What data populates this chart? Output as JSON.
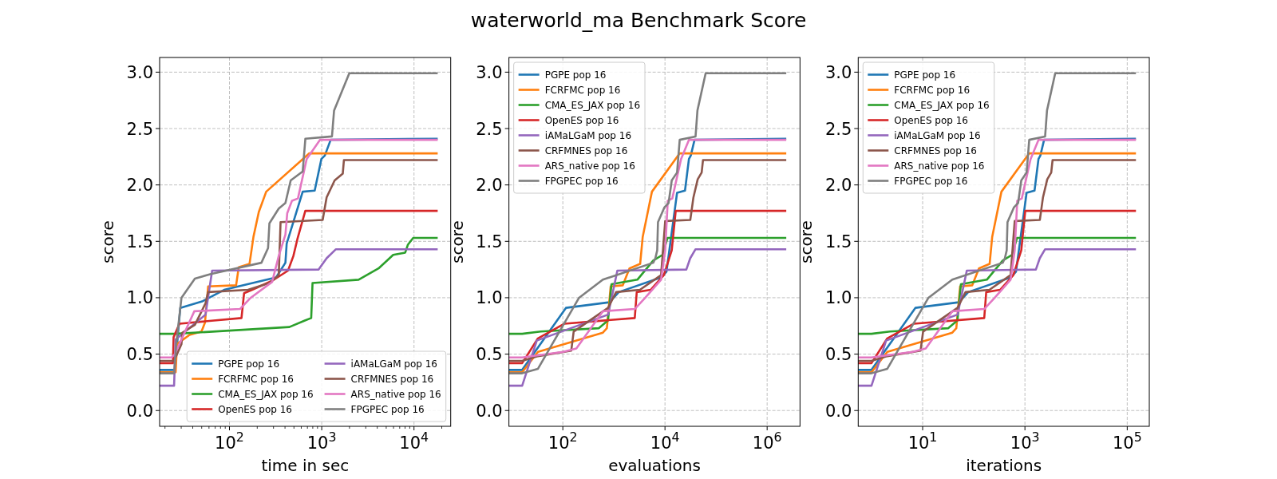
{
  "chart_data": [
    {
      "type": "line",
      "xlabel": "time in sec",
      "ylabel": "score",
      "log": "x",
      "grid": true,
      "legend": "bottom right",
      "xlim": [
        17.5,
        25000
      ],
      "ylim": [
        -0.14,
        3.13
      ],
      "xticks": [
        {
          "value": 20,
          "label": null
        },
        {
          "value": 30,
          "label": null
        },
        {
          "value": 40,
          "label": null
        },
        {
          "value": 50,
          "label": null
        },
        {
          "value": 60,
          "label": null
        },
        {
          "value": 70,
          "label": null
        },
        {
          "value": 80,
          "label": null
        },
        {
          "value": 90,
          "label": null
        },
        {
          "value": 100,
          "label": "10$^{2}$"
        },
        {
          "value": 200,
          "label": null
        },
        {
          "value": 300,
          "label": null
        },
        {
          "value": 400,
          "label": null
        },
        {
          "value": 500,
          "label": null
        },
        {
          "value": 600,
          "label": null
        },
        {
          "value": 700,
          "label": null
        },
        {
          "value": 800,
          "label": null
        },
        {
          "value": 900,
          "label": null
        },
        {
          "value": 1000,
          "label": "10$^{3}$"
        },
        {
          "value": 2000,
          "label": null
        },
        {
          "value": 3000,
          "label": null
        },
        {
          "value": 4000,
          "label": null
        },
        {
          "value": 5000,
          "label": null
        },
        {
          "value": 6000,
          "label": null
        },
        {
          "value": 7000,
          "label": null
        },
        {
          "value": 8000,
          "label": null
        },
        {
          "value": 9000,
          "label": null
        },
        {
          "value": 10000,
          "label": "10$^{4}$"
        },
        {
          "value": 20000,
          "label": null
        }
      ],
      "yticks": [
        {
          "value": 0,
          "label": "0.0"
        },
        {
          "value": 0.5,
          "label": "0.5"
        },
        {
          "value": 1,
          "label": "1.0"
        },
        {
          "value": 1.5,
          "label": "1.5"
        },
        {
          "value": 2,
          "label": "2.0"
        },
        {
          "value": 2.5,
          "label": "2.5"
        },
        {
          "value": 3,
          "label": "3.0"
        }
      ],
      "series": [
        {
          "name": "PGPE pop 16",
          "color": "#1f77b4",
          "x": [
            17.5,
            25.6,
            29.3,
            51.4,
            87.5,
            320,
            404,
            417,
            622,
            839,
            991,
            1080,
            1250,
            18070
          ],
          "values": [
            0.36,
            0.36,
            0.91,
            0.97,
            1.07,
            1.18,
            1.31,
            1.48,
            1.94,
            1.95,
            2.23,
            2.26,
            2.4,
            2.41
          ]
        },
        {
          "name": "FCRFMC pop 16",
          "color": "#ff7f0e",
          "x": [
            17.5,
            26.1,
            27,
            36.9,
            49.8,
            54.3,
            58.7,
            118,
            126,
            165,
            182,
            208,
            250,
            734,
            18070
          ],
          "values": [
            0.34,
            0.34,
            0.59,
            0.67,
            0.7,
            0.78,
            1.1,
            1.11,
            1.27,
            1.3,
            1.54,
            1.76,
            1.94,
            2.28,
            2.28
          ]
        },
        {
          "name": "CMA_ES_JAX pop 16",
          "color": "#2ca02c",
          "x": [
            17.5,
            25.6,
            446,
            664,
            769,
            795,
            2510,
            4130,
            5950,
            8030,
            8590,
            9800,
            18070
          ],
          "values": [
            0.68,
            0.68,
            0.74,
            0.8,
            0.82,
            1.13,
            1.16,
            1.26,
            1.38,
            1.4,
            1.47,
            1.53,
            1.53
          ]
        },
        {
          "name": "OpenES pop 16",
          "color": "#d62728",
          "x": [
            17.5,
            24.4,
            24.8,
            28.7,
            135,
            144,
            176,
            290,
            431,
            493,
            545,
            664,
            18070
          ],
          "values": [
            0.42,
            0.42,
            0.65,
            0.77,
            0.82,
            1.04,
            1.07,
            1.15,
            1.24,
            1.37,
            1.52,
            1.77,
            1.77
          ]
        },
        {
          "name": "iAMaLGaM pop 16",
          "color": "#9467bd",
          "x": [
            17.5,
            25.1,
            26.1,
            55,
            64.9,
            926,
            1130,
            1426,
            18070
          ],
          "values": [
            0.22,
            0.22,
            0.63,
            0.85,
            1.24,
            1.25,
            1.35,
            1.43,
            1.43
          ]
        },
        {
          "name": "CRFMNES pop 16",
          "color": "#8c564b",
          "x": [
            17.5,
            25.1,
            30.2,
            30.8,
            42.2,
            55,
            58.7,
            159,
            271,
            342,
            358,
            1024,
            1130,
            1380,
            1690,
            1740,
            18070
          ],
          "values": [
            0.44,
            0.44,
            0.59,
            0.69,
            0.76,
            0.95,
            1.05,
            1.07,
            1.13,
            1.2,
            1.67,
            1.69,
            1.89,
            2.04,
            2.1,
            2.22,
            2.22
          ]
        },
        {
          "name": "ARS_native pop 16",
          "color": "#e377c2",
          "x": [
            17.5,
            23.5,
            25.6,
            41.6,
            130,
            170,
            290,
            342,
            404,
            423,
            476,
            552,
            687,
            957,
            18070
          ],
          "values": [
            0.47,
            0.47,
            0.5,
            0.88,
            0.9,
            1.0,
            1.14,
            1.37,
            1.56,
            1.75,
            1.86,
            1.88,
            2.23,
            2.4,
            2.4
          ]
        },
        {
          "name": "FPGPEC pop 16",
          "color": "#7f7f7f",
          "x": [
            17.5,
            25.1,
            26.5,
            30.2,
            42.2,
            62.8,
            222,
            262,
            271,
            342,
            404,
            461,
            622,
            665,
            1291,
            1361,
            1990,
            18070
          ],
          "values": [
            0.33,
            0.33,
            0.59,
            1.0,
            1.17,
            1.21,
            1.31,
            1.44,
            1.66,
            1.79,
            1.84,
            2.04,
            2.12,
            2.41,
            2.43,
            2.66,
            2.99,
            2.99
          ]
        }
      ]
    },
    {
      "type": "line",
      "title": "waterworld_ma Benchmark Score",
      "xlabel": "evaluations",
      "ylabel": "score",
      "log": "x",
      "grid": true,
      "legend": "top left",
      "xlim": [
        8.8,
        4400000
      ],
      "ylim": [
        -0.14,
        3.13
      ],
      "xticks": [
        {
          "value": 100,
          "label": "10$^{2}$"
        },
        {
          "value": 10000,
          "label": "10$^{4}$"
        },
        {
          "value": 1000000,
          "label": "10$^{6}$"
        }
      ],
      "yticks": [
        {
          "value": 0,
          "label": "0.0"
        },
        {
          "value": 0.5,
          "label": "0.5"
        },
        {
          "value": 1,
          "label": "1.0"
        },
        {
          "value": 1.5,
          "label": "1.5"
        },
        {
          "value": 2,
          "label": "2.0"
        },
        {
          "value": 2.5,
          "label": "2.5"
        },
        {
          "value": 3,
          "label": "3.0"
        }
      ],
      "series": [
        {
          "name": "PGPE pop 16",
          "color": "#1f77b4",
          "x": [
            8.8,
            16,
            115,
            816,
            1248,
            8384,
            10688,
            17232,
            24640,
            29440,
            32000,
            37920,
            2368000
          ],
          "values": [
            0.36,
            0.36,
            0.91,
            0.96,
            1.05,
            1.18,
            1.23,
            1.93,
            1.95,
            2.23,
            2.26,
            2.4,
            2.41
          ]
        },
        {
          "name": "FCRFMC pop 16",
          "color": "#ff7f0e",
          "x": [
            8.8,
            16,
            32.6,
            608,
            728,
            864,
            1488,
            2016,
            3264,
            3664,
            5552,
            19424,
            2368000
          ],
          "values": [
            0.34,
            0.34,
            0.52,
            0.69,
            0.73,
            1.1,
            1.11,
            1.26,
            1.3,
            1.54,
            1.94,
            2.28,
            2.28
          ]
        },
        {
          "name": "CMA_ES_JAX pop 16",
          "color": "#2ca02c",
          "x": [
            8.8,
            16,
            36.8,
            509,
            768,
            896,
            2880,
            5888,
            8928,
            11200,
            2368000
          ],
          "values": [
            0.68,
            0.68,
            0.7,
            0.73,
            0.8,
            1.12,
            1.16,
            1.33,
            1.38,
            1.53,
            1.53
          ]
        },
        {
          "name": "OpenES pop 16",
          "color": "#d62728",
          "x": [
            8.8,
            16,
            32.6,
            108,
            2560,
            2800,
            5232,
            9488,
            13552,
            16224,
            2368000
          ],
          "values": [
            0.42,
            0.42,
            0.64,
            0.77,
            0.82,
            1.05,
            1.07,
            1.2,
            1.42,
            1.77,
            1.77
          ]
        },
        {
          "name": "iAMaLGaM pop 16",
          "color": "#9467bd",
          "x": [
            8.8,
            16,
            30.9,
            768,
            1168,
            26192,
            31200,
            39680,
            2368000
          ],
          "values": [
            0.22,
            0.22,
            0.62,
            0.85,
            1.24,
            1.25,
            1.35,
            1.43,
            1.43
          ]
        },
        {
          "name": "CRFMNES pop 16",
          "color": "#8c564b",
          "x": [
            8.8,
            16,
            30.9,
            146,
            163,
            768,
            1104,
            3232,
            8384,
            10096,
            31280,
            36064,
            43680,
            52240,
            55472,
            2368000
          ],
          "values": [
            0.44,
            0.44,
            0.48,
            0.53,
            0.7,
            0.91,
            1.05,
            1.07,
            1.2,
            1.68,
            1.69,
            1.89,
            2.05,
            2.11,
            2.22,
            2.22
          ]
        },
        {
          "name": "ARS_native pop 16",
          "color": "#e377c2",
          "x": [
            8.8,
            16,
            102,
            184,
            608,
            2560,
            4112,
            8384,
            10096,
            11328,
            13888,
            20640,
            29440,
            2368000
          ],
          "values": [
            0.47,
            0.47,
            0.52,
            0.55,
            0.88,
            0.9,
            1.0,
            1.16,
            1.42,
            1.86,
            1.88,
            2.23,
            2.4,
            2.4
          ]
        },
        {
          "name": "FPGPEC pop 16",
          "color": "#7f7f7f",
          "x": [
            8.8,
            16,
            32.6,
            208,
            608,
            5888,
            6480,
            7040,
            7296,
            9712,
            11760,
            13568,
            17232,
            19424,
            39680,
            43200,
            62560,
            2368000
          ],
          "values": [
            0.33,
            0.33,
            0.37,
            1.0,
            1.16,
            1.31,
            1.35,
            1.42,
            1.67,
            1.8,
            1.84,
            2.04,
            2.11,
            2.4,
            2.43,
            2.66,
            2.99,
            2.99
          ]
        }
      ]
    },
    {
      "type": "line",
      "xlabel": "iterations",
      "ylabel": "score",
      "log": "x",
      "grid": true,
      "legend": "top left",
      "xlim": [
        0.55,
        270000
      ],
      "ylim": [
        -0.14,
        3.13
      ],
      "xticks": [
        {
          "value": 10,
          "label": "10$^{1}$"
        },
        {
          "value": 1000,
          "label": "10$^{3}$"
        },
        {
          "value": 100000,
          "label": "10$^{5}$"
        }
      ],
      "yticks": [
        {
          "value": 0,
          "label": "0.0"
        },
        {
          "value": 0.5,
          "label": "0.5"
        },
        {
          "value": 1,
          "label": "1.0"
        },
        {
          "value": 1.5,
          "label": "1.5"
        },
        {
          "value": 2,
          "label": "2.0"
        },
        {
          "value": 2.5,
          "label": "2.5"
        },
        {
          "value": 3,
          "label": "3.0"
        }
      ],
      "series": [
        {
          "name": "PGPE pop 16",
          "color": "#1f77b4",
          "x": [
            0.55,
            1,
            7.2,
            51,
            78,
            524,
            668,
            1077,
            1540,
            1840,
            2000,
            2370,
            148000
          ],
          "values": [
            0.36,
            0.36,
            0.91,
            0.96,
            1.05,
            1.18,
            1.23,
            1.93,
            1.95,
            2.23,
            2.26,
            2.4,
            2.41
          ]
        },
        {
          "name": "FCRFMC pop 16",
          "color": "#ff7f0e",
          "x": [
            0.55,
            1,
            2.04,
            38,
            45.5,
            54,
            93,
            126,
            204,
            229,
            347,
            1214,
            148000
          ],
          "values": [
            0.34,
            0.34,
            0.52,
            0.69,
            0.73,
            1.1,
            1.11,
            1.26,
            1.3,
            1.54,
            1.94,
            2.28,
            2.28
          ]
        },
        {
          "name": "CMA_ES_JAX pop 16",
          "color": "#2ca02c",
          "x": [
            0.55,
            1,
            2.3,
            31.8,
            48,
            56,
            180,
            368,
            558,
            700,
            148000
          ],
          "values": [
            0.68,
            0.68,
            0.7,
            0.73,
            0.8,
            1.12,
            1.16,
            1.33,
            1.38,
            1.53,
            1.53
          ]
        },
        {
          "name": "OpenES pop 16",
          "color": "#d62728",
          "x": [
            0.55,
            1,
            2.04,
            6.74,
            160,
            175,
            327,
            593,
            847,
            1014,
            148000
          ],
          "values": [
            0.42,
            0.42,
            0.64,
            0.77,
            0.82,
            1.05,
            1.07,
            1.2,
            1.42,
            1.77,
            1.77
          ]
        },
        {
          "name": "iAMaLGaM pop 16",
          "color": "#9467bd",
          "x": [
            0.55,
            1,
            1.93,
            48,
            73,
            1637,
            1950,
            2480,
            148000
          ],
          "values": [
            0.22,
            0.22,
            0.62,
            0.85,
            1.24,
            1.25,
            1.35,
            1.43,
            1.43
          ]
        },
        {
          "name": "CRFMNES pop 16",
          "color": "#8c564b",
          "x": [
            0.55,
            1,
            1.93,
            9.1,
            10.2,
            48,
            69,
            202,
            524,
            631,
            1955,
            2254,
            2730,
            3265,
            3467,
            148000
          ],
          "values": [
            0.44,
            0.44,
            0.48,
            0.53,
            0.7,
            0.91,
            1.05,
            1.07,
            1.2,
            1.68,
            1.69,
            1.89,
            2.05,
            2.11,
            2.22,
            2.22
          ]
        },
        {
          "name": "ARS_native pop 16",
          "color": "#e377c2",
          "x": [
            0.55,
            1,
            6.36,
            11.5,
            38,
            160,
            257,
            524,
            631,
            708,
            868,
            1290,
            1840,
            148000
          ],
          "values": [
            0.47,
            0.47,
            0.52,
            0.55,
            0.88,
            0.9,
            1.0,
            1.16,
            1.42,
            1.86,
            1.88,
            2.23,
            2.4,
            2.4
          ]
        },
        {
          "name": "FPGPEC pop 16",
          "color": "#7f7f7f",
          "x": [
            0.55,
            1,
            2.04,
            13,
            38,
            368,
            405,
            440,
            456,
            607,
            735,
            848,
            1077,
            1214,
            2480,
            2700,
            3910,
            148000
          ],
          "values": [
            0.33,
            0.33,
            0.37,
            1.0,
            1.16,
            1.31,
            1.35,
            1.42,
            1.67,
            1.8,
            1.84,
            2.04,
            2.11,
            2.4,
            2.43,
            2.66,
            2.99,
            2.99
          ]
        }
      ]
    }
  ]
}
